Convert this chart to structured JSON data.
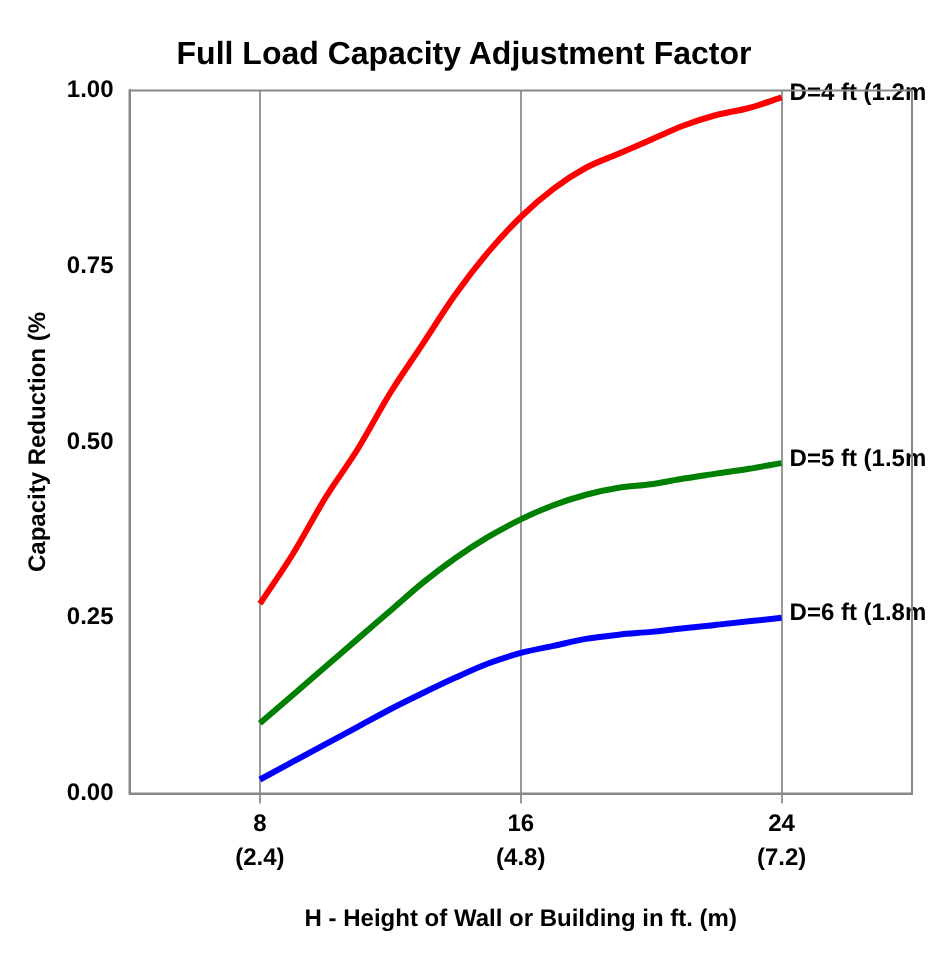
{
  "chart_data": {
    "type": "line",
    "title": "Full Load Capacity Adjustment Factor",
    "xlabel": "H - Height of Wall or Building in ft. (m)",
    "ylabel": "Capacity Reduction (%",
    "x": [
      8,
      9,
      10,
      11,
      12,
      13,
      14,
      15,
      16,
      17,
      18,
      19,
      20,
      21,
      22,
      23,
      24
    ],
    "series": [
      {
        "name": "D=4 ft (1.2m",
        "color": "#ff0000",
        "values": [
          0.27,
          0.34,
          0.42,
          0.49,
          0.57,
          0.64,
          0.71,
          0.77,
          0.82,
          0.86,
          0.89,
          0.91,
          0.93,
          0.95,
          0.965,
          0.975,
          0.99
        ]
      },
      {
        "name": "D=5 ft (1.5m",
        "color": "#008000",
        "values": [
          0.1,
          0.14,
          0.18,
          0.22,
          0.26,
          0.3,
          0.335,
          0.365,
          0.39,
          0.41,
          0.425,
          0.435,
          0.44,
          0.448,
          0.455,
          0.462,
          0.47
        ]
      },
      {
        "name": "D=6 ft (1.8m",
        "color": "#0000ff",
        "values": [
          0.02,
          0.045,
          0.07,
          0.095,
          0.12,
          0.143,
          0.165,
          0.185,
          0.2,
          0.21,
          0.22,
          0.226,
          0.23,
          0.235,
          0.24,
          0.245,
          0.25
        ]
      }
    ],
    "xlim": [
      4,
      28
    ],
    "xticks": [
      8,
      16,
      24
    ],
    "x2lim": [
      1.2,
      8.4
    ],
    "x2ticks": [
      {
        "value": 2.4,
        "label": "(2.4)"
      },
      {
        "value": 4.8,
        "label": "(4.8)"
      },
      {
        "value": 7.2,
        "label": "(7.2)"
      }
    ],
    "ylim": [
      0,
      1
    ],
    "yticks": [
      {
        "value": 0,
        "label": "0.00"
      },
      {
        "value": 0.25,
        "label": "0.25"
      },
      {
        "value": 0.5,
        "label": "0.50"
      },
      {
        "value": 0.75,
        "label": "0.75"
      },
      {
        "value": 1,
        "label": "1.00"
      }
    ],
    "grid": "x",
    "legend": false,
    "marker": "none",
    "line_style": "solid"
  }
}
